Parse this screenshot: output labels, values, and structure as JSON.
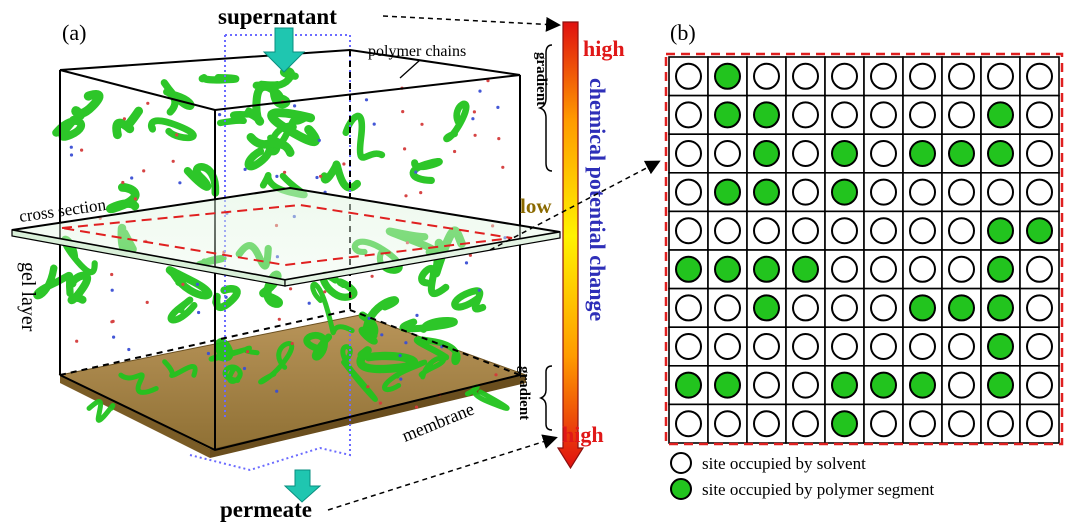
{
  "panel_a": {
    "label": "(a)",
    "supernatant": "supernatant",
    "permeate": "permeate",
    "polymer_chains": "polymer chains",
    "cross_section": "cross section",
    "gel_layer": "gel layer",
    "membrane": "membrane",
    "gradient_top": "gradient",
    "gradient_bottom": "gradient",
    "high_top": "high",
    "low": "low",
    "high_bottom": "high",
    "potential_label": "chemical potential change"
  },
  "panel_b": {
    "label": "(b)",
    "grid": [
      [
        0,
        1,
        0,
        0,
        0,
        0,
        0,
        0,
        0,
        0
      ],
      [
        0,
        1,
        1,
        0,
        0,
        0,
        0,
        0,
        1,
        0
      ],
      [
        0,
        0,
        1,
        0,
        1,
        0,
        1,
        1,
        1,
        0
      ],
      [
        0,
        1,
        1,
        0,
        1,
        0,
        0,
        0,
        0,
        0
      ],
      [
        0,
        0,
        0,
        0,
        0,
        0,
        0,
        0,
        1,
        1
      ],
      [
        1,
        1,
        1,
        1,
        0,
        0,
        0,
        0,
        1,
        0
      ],
      [
        0,
        0,
        1,
        0,
        0,
        0,
        1,
        1,
        1,
        0
      ],
      [
        0,
        0,
        0,
        0,
        0,
        0,
        0,
        0,
        1,
        0
      ],
      [
        1,
        1,
        0,
        0,
        1,
        1,
        1,
        0,
        1,
        0
      ],
      [
        0,
        0,
        0,
        0,
        1,
        0,
        0,
        0,
        0,
        0
      ]
    ],
    "legend": {
      "solvent": "site occupied by solvent",
      "polymer": "site occupied by polymer segment"
    }
  },
  "colors": {
    "polymer_green": "#22c41e",
    "red_dash": "#e02020",
    "blue_text": "#2e2fb8",
    "high_red": "#e01818",
    "low_gold": "#8b6a00",
    "membrane_tan": "#a8874a"
  }
}
